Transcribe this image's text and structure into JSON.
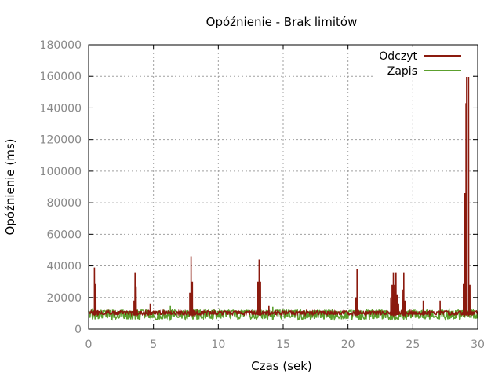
{
  "chart_data": {
    "type": "line",
    "title": "Opóźnienie - Brak limitów",
    "xlabel": "Czas (sek)",
    "ylabel": "Opóźnienie (ms)",
    "xlim": [
      0,
      30
    ],
    "ylim": [
      0,
      180000
    ],
    "xticks": [
      0,
      5,
      10,
      15,
      20,
      25,
      30
    ],
    "yticks": [
      0,
      20000,
      40000,
      60000,
      80000,
      100000,
      120000,
      140000,
      160000,
      180000
    ],
    "grid": true,
    "legend_position": "top-right",
    "series": [
      {
        "name": "Odczyt",
        "color": "#8b1a0e",
        "baseline": 9000,
        "spikes": [
          [
            0.45,
            39000
          ],
          [
            0.55,
            29000
          ],
          [
            0.7,
            12000
          ],
          [
            3.5,
            18000
          ],
          [
            3.58,
            36000
          ],
          [
            3.66,
            27000
          ],
          [
            3.75,
            12000
          ],
          [
            4.6,
            12000
          ],
          [
            4.75,
            16000
          ],
          [
            4.85,
            11000
          ],
          [
            7.8,
            23000
          ],
          [
            7.9,
            46000
          ],
          [
            8.0,
            30000
          ],
          [
            8.1,
            12000
          ],
          [
            13.05,
            30000
          ],
          [
            13.15,
            44000
          ],
          [
            13.25,
            30000
          ],
          [
            13.9,
            15000
          ],
          [
            14.4,
            12000
          ],
          [
            20.6,
            20000
          ],
          [
            20.7,
            38000
          ],
          [
            20.8,
            12000
          ],
          [
            23.3,
            20000
          ],
          [
            23.4,
            28000
          ],
          [
            23.5,
            36000
          ],
          [
            23.6,
            28000
          ],
          [
            23.7,
            36000
          ],
          [
            23.8,
            22000
          ],
          [
            23.9,
            16000
          ],
          [
            24.2,
            25000
          ],
          [
            24.3,
            36000
          ],
          [
            24.4,
            18000
          ],
          [
            25.8,
            18000
          ],
          [
            26.3,
            12000
          ],
          [
            27.1,
            18000
          ],
          [
            28.9,
            29000
          ],
          [
            29.0,
            86000
          ],
          [
            29.1,
            143000
          ],
          [
            29.15,
            171000
          ],
          [
            29.3,
            160000
          ],
          [
            29.4,
            28000
          ],
          [
            29.6,
            10000
          ]
        ]
      },
      {
        "name": "Zapis",
        "color": "#5ca02e",
        "baseline": 6000,
        "typical_max": 12000,
        "spikes": [
          [
            6.3,
            15000
          ],
          [
            14.2,
            14000
          ]
        ]
      }
    ]
  }
}
